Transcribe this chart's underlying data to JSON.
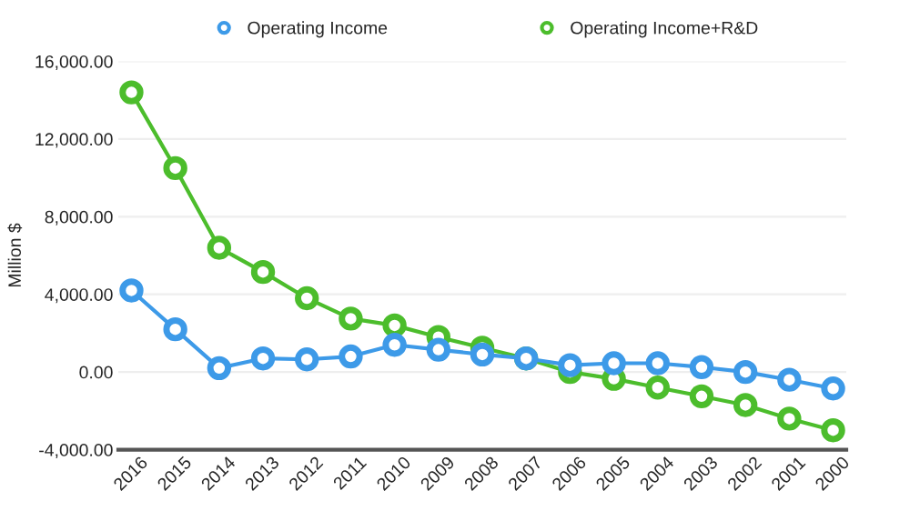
{
  "chart_data": {
    "type": "line",
    "ylabel": "Million $",
    "categories": [
      "2016",
      "2015",
      "2014",
      "2013",
      "2012",
      "2011",
      "2010",
      "2009",
      "2008",
      "2007",
      "2006",
      "2005",
      "2004",
      "2003",
      "2002",
      "2001",
      "2000"
    ],
    "series": [
      {
        "name": "Operating Income",
        "color": "#3d9ae8",
        "values": [
          4200,
          2200,
          200,
          700,
          650,
          800,
          1400,
          1150,
          900,
          700,
          350,
          450,
          450,
          250,
          0,
          -400,
          -850
        ]
      },
      {
        "name": "Operating Income+R&D",
        "color": "#4cbd2c",
        "values": [
          14400,
          10500,
          6400,
          5150,
          3800,
          2750,
          2400,
          1800,
          1250,
          700,
          0,
          -350,
          -800,
          -1250,
          -1700,
          -2400,
          -3000
        ]
      }
    ],
    "ylim": [
      -4000,
      16000
    ],
    "yticks": [
      {
        "value": -4000,
        "label": "-4,000.00"
      },
      {
        "value": 0,
        "label": "0.00"
      },
      {
        "value": 4000,
        "label": "4,000.00"
      },
      {
        "value": 8000,
        "label": "8,000.00"
      },
      {
        "value": 12000,
        "label": "12,000.00"
      },
      {
        "value": 16000,
        "label": "16,000.00"
      }
    ],
    "grid": "y",
    "legend": "top",
    "marker": "circle",
    "line_style": "solid"
  }
}
